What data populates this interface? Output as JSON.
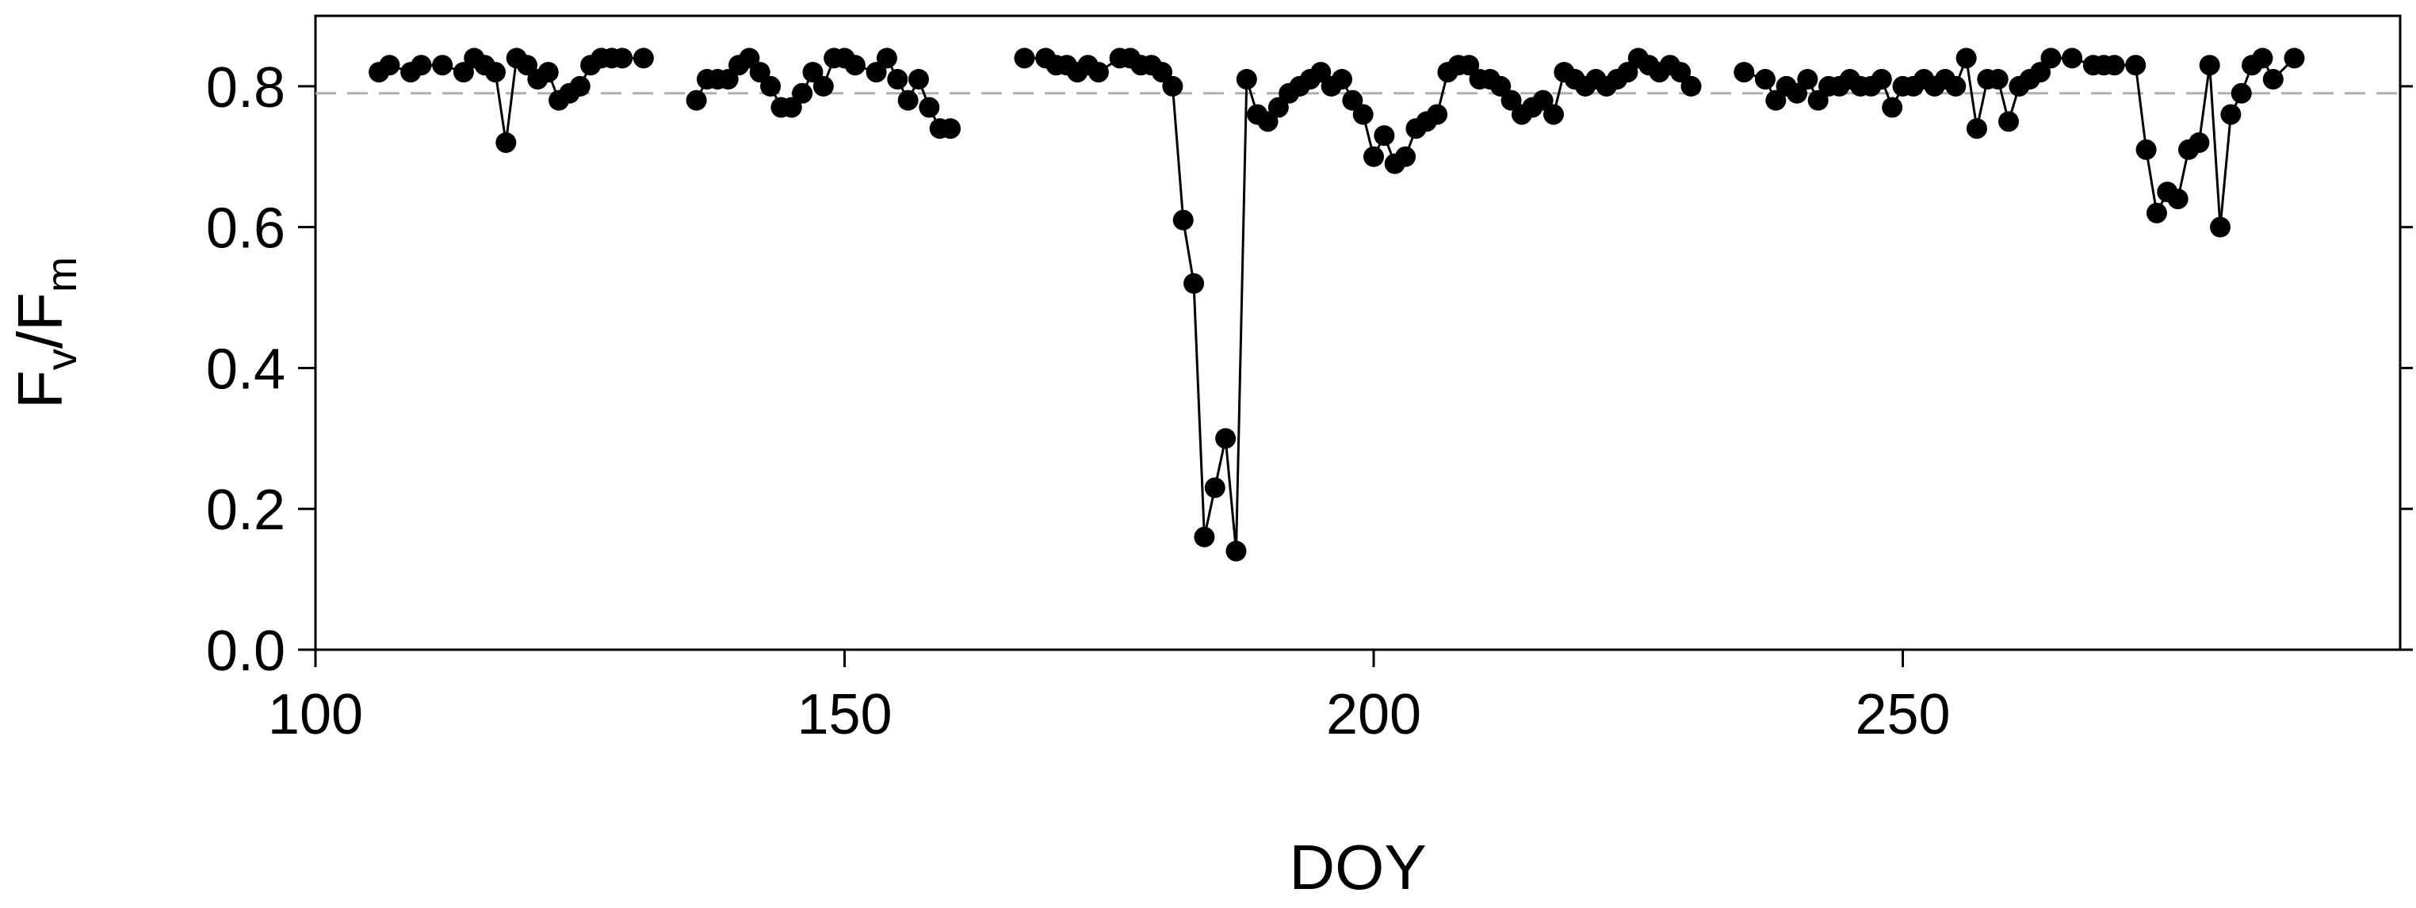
{
  "chart_data": {
    "type": "scatter",
    "xlabel": "DOY",
    "ylabel": {
      "main": "F",
      "sub1": "v",
      "sep": "/F",
      "sub2": "m"
    },
    "xlim": [
      100,
      297
    ],
    "ylim": [
      0,
      0.9
    ],
    "xticks": [
      100,
      150,
      200,
      250
    ],
    "xtick_labels": [
      "100",
      "150",
      "200",
      "250"
    ],
    "yticks": [
      0,
      0.2,
      0.4,
      0.6,
      0.8
    ],
    "ytick_labels": [
      "0.0",
      "0.2",
      "0.4",
      "0.6",
      "0.8"
    ],
    "grid": false,
    "reference_line": {
      "y": 0.79,
      "style": "dashed",
      "color": "#b0b0b0"
    },
    "series_color": "#000000",
    "segments": [
      {
        "x": [
          106,
          107,
          109,
          110,
          112,
          114,
          115,
          116,
          117,
          118,
          119,
          120,
          121,
          122,
          123,
          124,
          125,
          126,
          127,
          128,
          129,
          131
        ],
        "y": [
          0.82,
          0.83,
          0.82,
          0.83,
          0.83,
          0.82,
          0.84,
          0.83,
          0.82,
          0.72,
          0.84,
          0.83,
          0.81,
          0.82,
          0.78,
          0.79,
          0.8,
          0.83,
          0.84,
          0.84,
          0.84,
          0.84
        ]
      },
      {
        "x": [
          136,
          137,
          138,
          139,
          140,
          141,
          142,
          143,
          144,
          145,
          146,
          147,
          148,
          149,
          150,
          151,
          153,
          154,
          155,
          156,
          157,
          158,
          159,
          160
        ],
        "y": [
          0.78,
          0.81,
          0.81,
          0.81,
          0.83,
          0.84,
          0.82,
          0.8,
          0.77,
          0.77,
          0.79,
          0.82,
          0.8,
          0.84,
          0.84,
          0.83,
          0.82,
          0.84,
          0.81,
          0.78,
          0.81,
          0.77,
          0.74,
          0.74
        ]
      },
      {
        "x": [
          167,
          169,
          170,
          171,
          172,
          173,
          174,
          176,
          177,
          178,
          179,
          180,
          181,
          182,
          183,
          184,
          185,
          186,
          187,
          188,
          189,
          190,
          191,
          192,
          193,
          194,
          195,
          196,
          197,
          198,
          199,
          200,
          201,
          202,
          203,
          204,
          205,
          206,
          207,
          208,
          209,
          210,
          211,
          212,
          213,
          214,
          215,
          216,
          217,
          218,
          219,
          220,
          221,
          222,
          223,
          224,
          225,
          226,
          227,
          228,
          229,
          230
        ],
        "y": [
          0.84,
          0.84,
          0.83,
          0.83,
          0.82,
          0.83,
          0.82,
          0.84,
          0.84,
          0.83,
          0.83,
          0.82,
          0.8,
          0.61,
          0.52,
          0.16,
          0.23,
          0.3,
          0.14,
          0.81,
          0.76,
          0.75,
          0.77,
          0.79,
          0.8,
          0.81,
          0.82,
          0.8,
          0.81,
          0.78,
          0.76,
          0.7,
          0.73,
          0.69,
          0.7,
          0.74,
          0.75,
          0.76,
          0.82,
          0.83,
          0.83,
          0.81,
          0.81,
          0.8,
          0.78,
          0.76,
          0.77,
          0.78,
          0.76,
          0.82,
          0.81,
          0.8,
          0.81,
          0.8,
          0.81,
          0.82,
          0.84,
          0.83,
          0.82,
          0.83,
          0.82,
          0.8
        ]
      },
      {
        "x": [
          235,
          237,
          238,
          239,
          240,
          241,
          242,
          243,
          244,
          245,
          246,
          247,
          248,
          249,
          250,
          251,
          252,
          253,
          254,
          255,
          256,
          257,
          258,
          259,
          260,
          261,
          262,
          263,
          264,
          266,
          268,
          269,
          270,
          272,
          273,
          274,
          275,
          276,
          277,
          278,
          279,
          280,
          281,
          282,
          283,
          284,
          285,
          287
        ],
        "y": [
          0.82,
          0.81,
          0.78,
          0.8,
          0.79,
          0.81,
          0.78,
          0.8,
          0.8,
          0.81,
          0.8,
          0.8,
          0.81,
          0.77,
          0.8,
          0.8,
          0.81,
          0.8,
          0.81,
          0.8,
          0.84,
          0.74,
          0.81,
          0.81,
          0.75,
          0.8,
          0.81,
          0.82,
          0.84,
          0.84,
          0.83,
          0.83,
          0.83,
          0.83,
          0.71,
          0.62,
          0.65,
          0.64,
          0.71,
          0.72,
          0.83,
          0.6,
          0.76,
          0.79,
          0.83,
          0.84,
          0.81,
          0.84
        ]
      }
    ]
  }
}
